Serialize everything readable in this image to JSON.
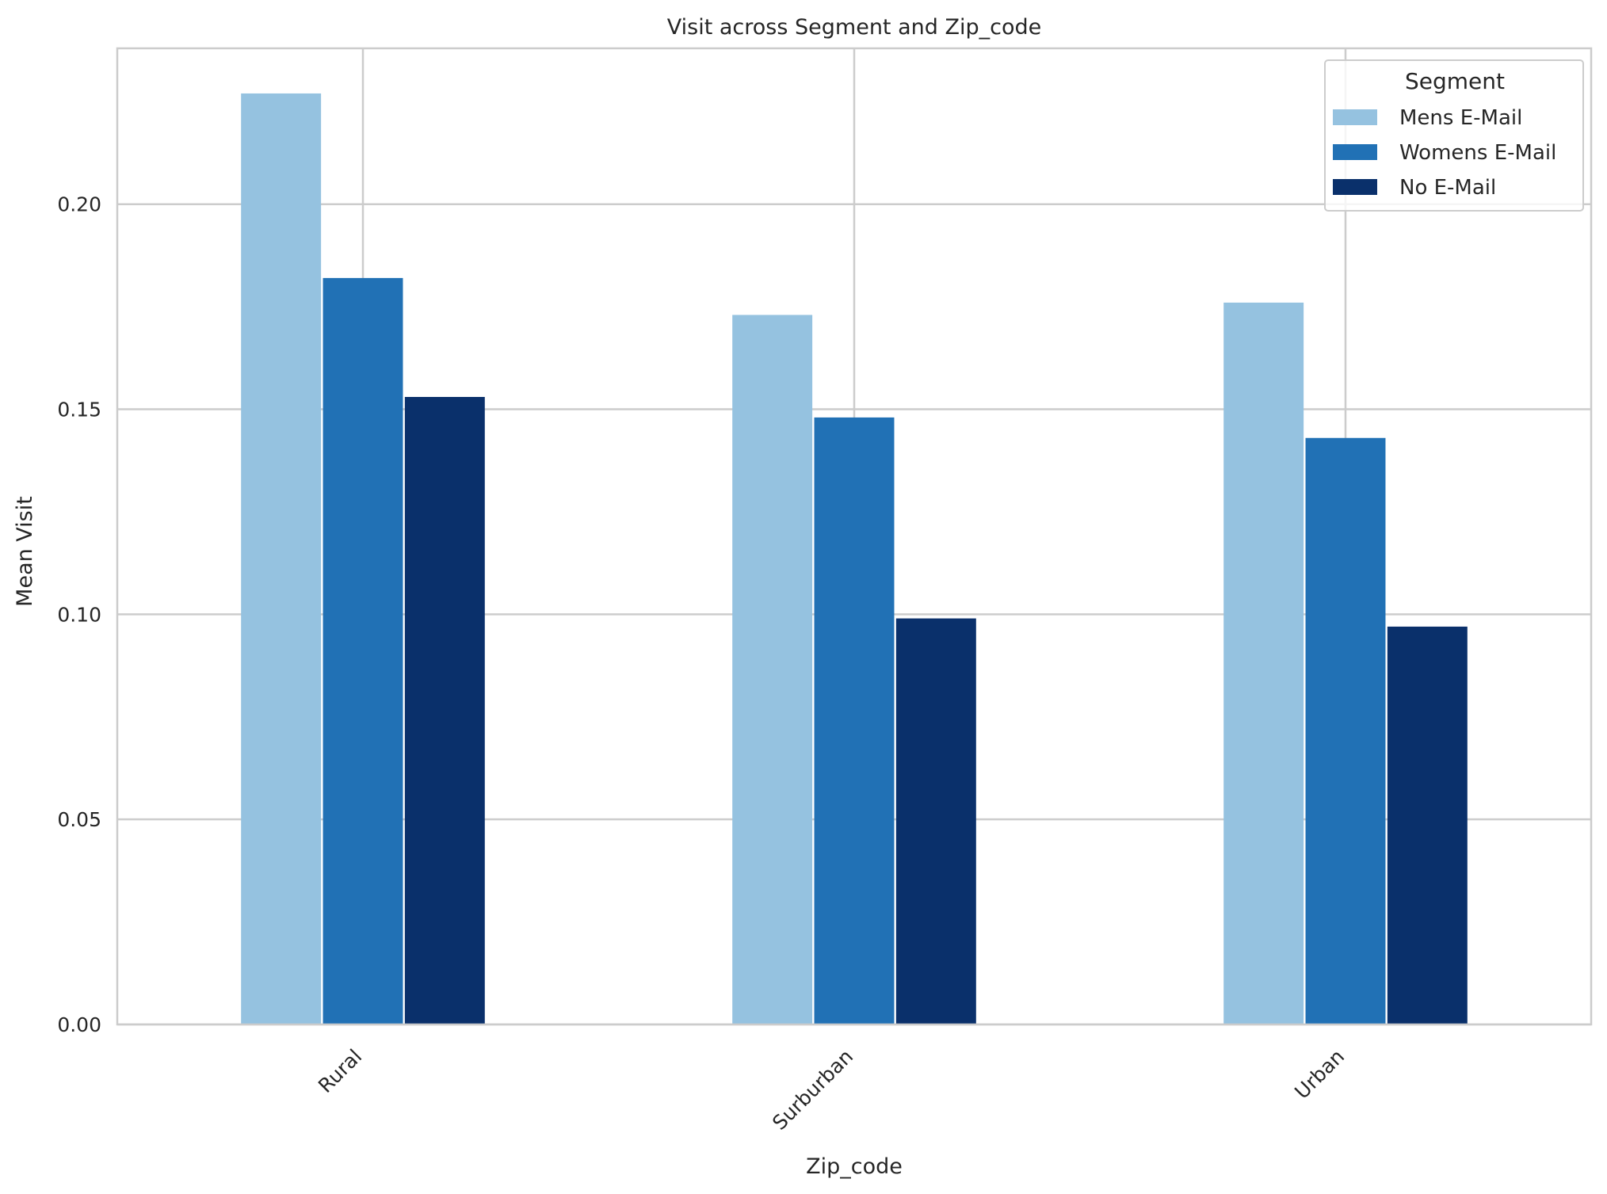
{
  "chart_data": {
    "type": "bar",
    "title": "Visit across Segment and Zip_code",
    "xlabel": "Zip_code",
    "ylabel": "Mean Visit",
    "categories": [
      "Rural",
      "Surburban",
      "Urban"
    ],
    "series": [
      {
        "name": "Mens E-Mail",
        "values": [
          0.227,
          0.173,
          0.176
        ],
        "color": "#95c2e0"
      },
      {
        "name": "Womens E-Mail",
        "values": [
          0.182,
          0.148,
          0.143
        ],
        "color": "#2171b5"
      },
      {
        "name": "No E-Mail",
        "values": [
          0.153,
          0.099,
          0.097
        ],
        "color": "#0a306b"
      }
    ],
    "ylim": [
      0,
      0.238
    ],
    "yticks": [
      0.0,
      0.05,
      0.1,
      0.15,
      0.2
    ],
    "ytick_labels": [
      "0.00",
      "0.05",
      "0.10",
      "0.15",
      "0.20"
    ],
    "grid": true,
    "legend": {
      "title": "Segment",
      "placement": "top-right"
    },
    "colors": {
      "grid": "#cccccc",
      "axes": "#cccccc",
      "text": "#262626"
    }
  }
}
